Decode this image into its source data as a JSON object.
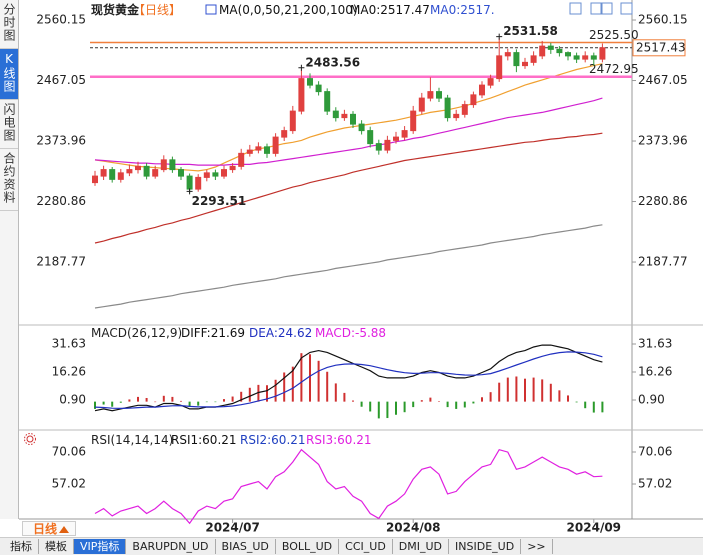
{
  "sidebar": [
    {
      "text": "分时图"
    },
    {
      "text": "K线图",
      "selected": true
    },
    {
      "text": "闪电图"
    },
    {
      "text": "合约资料"
    }
  ],
  "period": "日线",
  "tabs": [
    {
      "text": "指标"
    },
    {
      "text": "模板"
    },
    {
      "text": "VIP指标",
      "selected": true
    },
    {
      "text": "BARUPDN_UD"
    },
    {
      "text": "BIAS_UD"
    },
    {
      "text": "BOLL_UD"
    },
    {
      "text": "CCI_UD"
    },
    {
      "text": "DMI_UD"
    },
    {
      "text": "INSIDE_UD"
    },
    {
      "text": ">>"
    }
  ],
  "chart_data": [
    {
      "type": "candlestick",
      "title": "现货黄金",
      "subtitle": "【日线】",
      "legend": [
        {
          "text": "MA(0,0,50,21,200,100)",
          "color": "#111111"
        },
        {
          "text": "MA0:2517.47",
          "color": "#111111"
        },
        {
          "text": "MA0:2517.",
          "color": "#3050d0"
        }
      ],
      "categories": [
        null,
        null,
        null,
        null,
        null,
        null,
        null,
        null,
        null,
        null,
        null,
        null,
        null,
        null,
        null,
        null,
        "2024/07",
        null,
        null,
        null,
        null,
        null,
        null,
        null,
        null,
        null,
        null,
        null,
        null,
        null,
        null,
        null,
        null,
        null,
        null,
        null,
        null,
        "2024/08",
        null,
        null,
        null,
        null,
        null,
        null,
        null,
        null,
        null,
        null,
        null,
        null,
        null,
        null,
        null,
        null,
        null,
        null,
        null,
        null,
        "2024/09",
        null
      ],
      "open": [
        2310,
        2320,
        2330,
        2315,
        2325,
        2330,
        2335,
        2320,
        2330,
        2345,
        2330,
        2320,
        2300,
        2318,
        2325,
        2320,
        2330,
        2335,
        2355,
        2360,
        2365,
        2355,
        2380,
        2390,
        2420,
        2470,
        2460,
        2450,
        2420,
        2410,
        2415,
        2400,
        2390,
        2370,
        2360,
        2375,
        2380,
        2390,
        2420,
        2440,
        2450,
        2440,
        2410,
        2415,
        2430,
        2445,
        2460,
        2470,
        2505,
        2510,
        2490,
        2495,
        2505,
        2520,
        2515,
        2510,
        2505,
        2500,
        2505,
        2500
      ],
      "high": [
        2328,
        2336,
        2334,
        2331,
        2338,
        2342,
        2340,
        2336,
        2352,
        2350,
        2334,
        2324,
        2323,
        2330,
        2330,
        2336,
        2340,
        2362,
        2368,
        2372,
        2370,
        2386,
        2396,
        2428,
        2483.56,
        2478,
        2466,
        2455,
        2426,
        2422,
        2420,
        2406,
        2396,
        2376,
        2382,
        2388,
        2397,
        2428,
        2448,
        2472,
        2456,
        2445,
        2422,
        2436,
        2450,
        2466,
        2476,
        2531.58,
        2516,
        2515,
        2502,
        2512,
        2528,
        2525,
        2520,
        2512,
        2510,
        2512,
        2510,
        2524
      ],
      "low": [
        2305,
        2314,
        2310,
        2310,
        2320,
        2324,
        2315,
        2316,
        2326,
        2325,
        2314,
        2293.51,
        2296,
        2312,
        2314,
        2316,
        2325,
        2330,
        2350,
        2355,
        2348,
        2350,
        2374,
        2385,
        2415,
        2455,
        2444,
        2414,
        2404,
        2405,
        2394,
        2384,
        2364,
        2353,
        2355,
        2370,
        2375,
        2385,
        2415,
        2435,
        2434,
        2404,
        2405,
        2410,
        2425,
        2440,
        2455,
        2465,
        2498,
        2480,
        2485,
        2490,
        2500,
        2508,
        2504,
        2498,
        2494,
        2495,
        2490,
        2495
      ],
      "close": [
        2320,
        2330,
        2315,
        2325,
        2330,
        2335,
        2320,
        2330,
        2345,
        2330,
        2320,
        2300,
        2318,
        2325,
        2320,
        2330,
        2335,
        2355,
        2360,
        2365,
        2355,
        2380,
        2390,
        2420,
        2470,
        2460,
        2450,
        2420,
        2410,
        2415,
        2400,
        2390,
        2370,
        2360,
        2375,
        2380,
        2390,
        2420,
        2440,
        2450,
        2440,
        2410,
        2415,
        2430,
        2445,
        2460,
        2470,
        2505,
        2510,
        2490,
        2495,
        2505,
        2520,
        2515,
        2510,
        2505,
        2500,
        2505,
        2500,
        2517.43
      ],
      "up_color": "#e0403f",
      "down_color": "#2f9a3a",
      "ma": [
        {
          "color": "#f0a030",
          "values": [
            2345,
            2343,
            2341,
            2339,
            2337,
            2335,
            2334,
            2333,
            2332,
            2331,
            2330,
            2329,
            2328,
            2330,
            2334,
            2340,
            2346,
            2352,
            2358,
            2362,
            2364,
            2367,
            2370,
            2372,
            2375,
            2380,
            2384,
            2388,
            2391,
            2394,
            2396,
            2398,
            2400,
            2402,
            2404,
            2406,
            2409,
            2412,
            2415,
            2418,
            2420,
            2422,
            2425,
            2428,
            2432,
            2436,
            2440,
            2445,
            2450,
            2455,
            2460,
            2464,
            2468,
            2472,
            2476,
            2480,
            2484,
            2487,
            2490,
            2493
          ]
        },
        {
          "color": "#d020d0",
          "values": [
            2345,
            2344,
            2343,
            2342,
            2341,
            2340,
            2340,
            2339,
            2339,
            2338,
            2338,
            2338,
            2337,
            2337,
            2337,
            2337,
            2338,
            2338,
            2338,
            2340,
            2341,
            2343,
            2345,
            2347,
            2349,
            2351,
            2353,
            2355,
            2357,
            2359,
            2361,
            2363,
            2366,
            2368,
            2370,
            2373,
            2375,
            2378,
            2380,
            2383,
            2386,
            2389,
            2392,
            2395,
            2398,
            2401,
            2404,
            2407,
            2410,
            2412,
            2414,
            2416,
            2418,
            2421,
            2424,
            2427,
            2430,
            2433,
            2436,
            2440
          ]
        },
        {
          "color": "#c0302a",
          "values": [
            2217,
            2220,
            2224,
            2227,
            2231,
            2234,
            2238,
            2241,
            2245,
            2248,
            2252,
            2255,
            2259,
            2263,
            2267,
            2271,
            2275,
            2279,
            2283,
            2287,
            2291,
            2295,
            2299,
            2303,
            2306,
            2310,
            2313,
            2316,
            2319,
            2322,
            2326,
            2329,
            2332,
            2335,
            2338,
            2341,
            2344,
            2346,
            2348,
            2350,
            2352,
            2354,
            2356,
            2358,
            2360,
            2362,
            2364,
            2366,
            2368,
            2370,
            2372,
            2373,
            2375,
            2377,
            2378,
            2380,
            2381,
            2383,
            2384,
            2386
          ]
        },
        {
          "color": "#8a8a8a",
          "values": [
            2117,
            2119,
            2121,
            2123,
            2126,
            2128,
            2130,
            2132,
            2134,
            2136,
            2139,
            2141,
            2143,
            2145,
            2147,
            2149,
            2152,
            2154,
            2156,
            2158,
            2160,
            2162,
            2165,
            2167,
            2169,
            2171,
            2173,
            2175,
            2178,
            2180,
            2182,
            2184,
            2186,
            2188,
            2191,
            2193,
            2195,
            2197,
            2199,
            2201,
            2204,
            2206,
            2208,
            2210,
            2212,
            2214,
            2217,
            2219,
            2221,
            2223,
            2225,
            2227,
            2230,
            2232,
            2234,
            2236,
            2238,
            2240,
            2243,
            2245
          ]
        }
      ],
      "reference_lines": [
        {
          "value": 2525.5,
          "label": "2525.50",
          "color": "#f07f3c",
          "width": 1.5
        },
        {
          "value": 2517.43,
          "color": "#333333",
          "dashed": true,
          "boxed": true,
          "box_color": "#f07f3c"
        },
        {
          "value": 2472.95,
          "color": "#ff6ec7",
          "width": 2.5
        }
      ],
      "annotations": [
        {
          "value": 2531.58,
          "color": "#e0403f"
        },
        {
          "value": 2483.56,
          "color": "#e0403f"
        },
        {
          "value": 2293.51,
          "color": "#3a9a3a"
        }
      ],
      "ylim": [
        2095.5,
        2572.5
      ],
      "yticks": [
        2560.15,
        2467.05,
        2373.96,
        2280.86,
        2187.77
      ]
    },
    {
      "type": "macd",
      "title": "MACD(26,12,9)",
      "series": [
        {
          "name": "DIFF:21.69",
          "color": "#111111",
          "values": [
            -5,
            -4,
            -5,
            -4,
            -3,
            -2,
            -2,
            -3,
            -1,
            -1,
            -2,
            -4,
            -4,
            -3,
            -3,
            -2,
            -1,
            1,
            3,
            5,
            6,
            9,
            13,
            17,
            24,
            27,
            28,
            27,
            25,
            23,
            21,
            19,
            17,
            14,
            13,
            13,
            13,
            14,
            16,
            17,
            16,
            14,
            13,
            13,
            14,
            16,
            18,
            22,
            25,
            27,
            28,
            30,
            31,
            31,
            30,
            29,
            27,
            25,
            23,
            21.69
          ]
        },
        {
          "name": "DEA:24.62",
          "color": "#2030c0",
          "values": [
            -3,
            -3.2,
            -3.6,
            -3.7,
            -3.6,
            -3.3,
            -3,
            -3,
            -2.6,
            -2.3,
            -2.2,
            -2.6,
            -2.9,
            -2.9,
            -2.9,
            -2.7,
            -2.4,
            -1.7,
            -0.8,
            0.4,
            1.5,
            3,
            5,
            7.4,
            10.7,
            14,
            16.8,
            18.8,
            20,
            20.6,
            20.7,
            20.4,
            19.7,
            18.6,
            17.5,
            16.6,
            15.9,
            15.5,
            15.6,
            15.9,
            15.9,
            15.5,
            15,
            14.6,
            14.5,
            14.8,
            15.4,
            16.8,
            18.4,
            20.1,
            21.7,
            23.4,
            24.9,
            26.1,
            26.9,
            27.3,
            27.2,
            26.8,
            26,
            24.62
          ]
        },
        {
          "name": "MACD:-5.88",
          "color": "#e020e0",
          "bars": true,
          "up_color": "#d03030",
          "down_color": "#2a9a2a",
          "values": [
            -4,
            -1.6,
            -2.8,
            -0.6,
            1.2,
            2.6,
            2,
            0,
            3.2,
            2.6,
            0.4,
            -2.8,
            -2.2,
            -0.2,
            -0.2,
            1.4,
            2.8,
            5.4,
            7.6,
            9.2,
            9,
            12,
            16,
            19.2,
            26.6,
            26,
            22.4,
            16.4,
            10,
            4.8,
            0.6,
            -2.8,
            -5.4,
            -9.2,
            -9,
            -7.2,
            -5.8,
            -3,
            0.8,
            2.2,
            0.2,
            -3,
            -4,
            -3.2,
            -1,
            2.4,
            5.2,
            10.4,
            13.2,
            13.8,
            12.6,
            13.2,
            12.2,
            9.8,
            6.2,
            3.4,
            -0.4,
            -3.6,
            -6,
            -5.88
          ]
        }
      ],
      "ylim": [
        -14.47,
        36.57
      ],
      "yticks": [
        31.63,
        16.26,
        {
          "value": 0.9,
          "label": "0.90"
        }
      ]
    },
    {
      "type": "rsi",
      "title": "RSI(14,14,14)",
      "series": [
        {
          "name": "RSI1:60.21",
          "color": "#111111"
        },
        {
          "name": "RSI2:60.21",
          "color": "#2040c0"
        },
        {
          "name": "RSI3:60.21",
          "color": "#e020e0",
          "values": [
            45,
            47,
            44,
            46,
            47,
            48,
            45,
            47,
            50,
            47,
            45,
            41,
            46,
            48,
            47,
            50,
            51,
            56,
            57,
            58,
            55,
            60,
            62,
            66,
            71,
            68,
            65,
            58,
            55,
            56,
            52,
            50,
            45,
            43,
            48,
            50,
            53,
            59,
            63,
            64,
            61,
            53,
            54,
            58,
            61,
            64,
            65,
            71,
            70,
            63,
            64,
            66,
            68,
            66,
            64,
            63,
            61,
            62,
            60,
            60.21
          ]
        }
      ],
      "ylim": [
        43.16,
        76.99
      ],
      "yticks": [
        70.06,
        57.02
      ]
    }
  ]
}
